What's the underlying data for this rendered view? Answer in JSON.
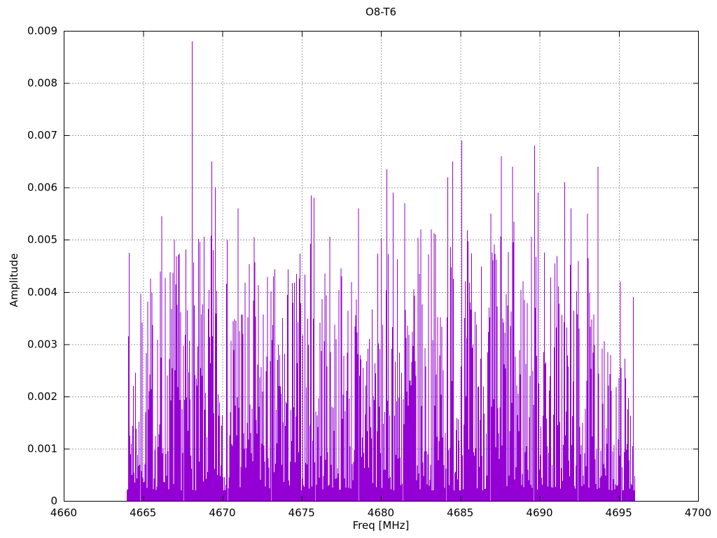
{
  "chart_data": {
    "type": "impulses",
    "title": "O8-T6",
    "xlabel": "Freq [MHz]",
    "ylabel": "Amplitude",
    "xlim": [
      4660,
      4700
    ],
    "ylim": [
      0,
      0.009
    ],
    "x_ticks": [
      4660,
      4665,
      4670,
      4675,
      4680,
      4685,
      4690,
      4695,
      4700
    ],
    "x_tick_labels": [
      "4660",
      "4665",
      "4670",
      "4675",
      "4680",
      "4685",
      "4690",
      "4695",
      "4700"
    ],
    "y_ticks": [
      0,
      0.001,
      0.002,
      0.003,
      0.004,
      0.005,
      0.006,
      0.007,
      0.008,
      0.009
    ],
    "y_tick_labels": [
      "0",
      "0.001",
      "0.002",
      "0.003",
      "0.004",
      "0.005",
      "0.006",
      "0.007",
      "0.008",
      "0.009"
    ],
    "grid": true,
    "legend": "none",
    "line_color": "#9400d3",
    "grid_color": "#a0a0a0",
    "border_color": "#000000",
    "series_spec": {
      "comment": "dense noise spectrum reconstructed from screenshot: ~720 impulses, 4664-4696 MHz, baseline ~0.002, plus labeled peaks read off the plot",
      "x_start": 4664.0,
      "x_end": 4696.0,
      "points": 720,
      "seed": 7,
      "base": 0.0002,
      "spread": 0.0048,
      "power": 1.7,
      "envelope": [
        [
          4664.0,
          0.62
        ],
        [
          4665.0,
          0.85
        ],
        [
          4666.5,
          1.0
        ],
        [
          4668.0,
          1.0
        ],
        [
          4670.0,
          1.05
        ],
        [
          4671.5,
          0.95
        ],
        [
          4673.0,
          0.9
        ],
        [
          4675.0,
          1.0
        ],
        [
          4676.5,
          1.05
        ],
        [
          4678.0,
          0.95
        ],
        [
          4680.0,
          1.05
        ],
        [
          4682.0,
          1.0
        ],
        [
          4684.0,
          1.1
        ],
        [
          4686.0,
          1.05
        ],
        [
          4688.0,
          1.1
        ],
        [
          4690.0,
          1.05
        ],
        [
          4691.5,
          1.0
        ],
        [
          4693.0,
          0.95
        ],
        [
          4694.0,
          0.62
        ],
        [
          4695.0,
          0.55
        ],
        [
          4696.0,
          0.6
        ]
      ],
      "peaks": [
        [
          4664.15,
          0.00475
        ],
        [
          4666.2,
          0.00545
        ],
        [
          4667.0,
          0.005
        ],
        [
          4668.1,
          0.0088
        ],
        [
          4669.35,
          0.0065
        ],
        [
          4669.55,
          0.006
        ],
        [
          4671.0,
          0.0056
        ],
        [
          4672.0,
          0.00505
        ],
        [
          4675.6,
          0.00585
        ],
        [
          4675.78,
          0.0058
        ],
        [
          4678.6,
          0.0056
        ],
        [
          4680.4,
          0.00635
        ],
        [
          4680.8,
          0.0059
        ],
        [
          4681.5,
          0.0057
        ],
        [
          4682.5,
          0.0052
        ],
        [
          4683.2,
          0.0052
        ],
        [
          4684.2,
          0.0062
        ],
        [
          4684.5,
          0.0065
        ],
        [
          4685.1,
          0.0069
        ],
        [
          4686.9,
          0.0055
        ],
        [
          4687.6,
          0.0066
        ],
        [
          4688.3,
          0.0064
        ],
        [
          4689.7,
          0.0068
        ],
        [
          4689.9,
          0.0059
        ],
        [
          4691.6,
          0.0061
        ],
        [
          4692.0,
          0.0056
        ],
        [
          4693.0,
          0.0055
        ],
        [
          4693.7,
          0.0064
        ],
        [
          4695.1,
          0.0042
        ],
        [
          4695.9,
          0.0039
        ]
      ]
    }
  }
}
